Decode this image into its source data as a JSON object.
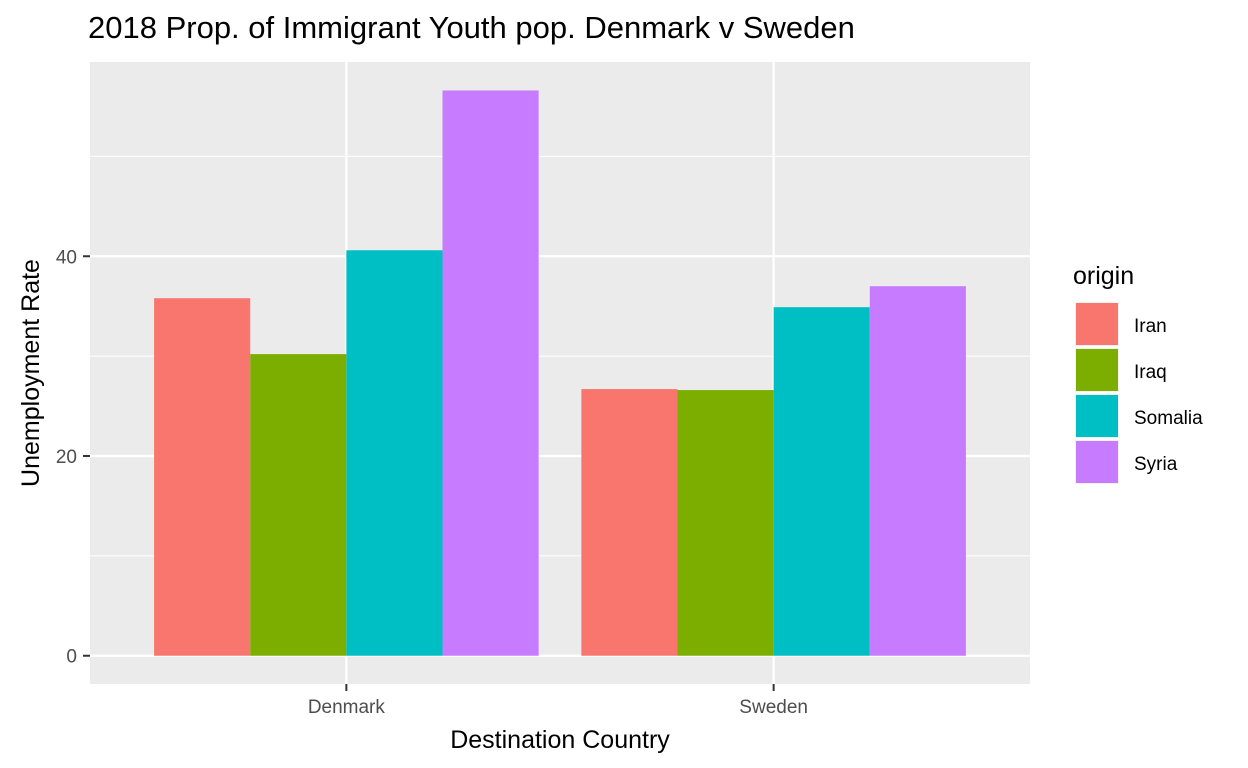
{
  "chart_data": {
    "type": "bar",
    "title": "2018 Prop. of Immigrant Youth pop. Denmark v Sweden",
    "xlabel": "Destination Country",
    "ylabel": "Unemployment Rate",
    "categories": [
      "Denmark",
      "Sweden"
    ],
    "series": [
      {
        "name": "Iran",
        "values": [
          35.8,
          26.7
        ]
      },
      {
        "name": "Iraq",
        "values": [
          30.2,
          26.6
        ]
      },
      {
        "name": "Somalia",
        "values": [
          40.6,
          34.9
        ]
      },
      {
        "name": "Syria",
        "values": [
          56.6,
          37.0
        ]
      }
    ],
    "colors": {
      "Iran": "#F8766D",
      "Iraq": "#7CAE00",
      "Somalia": "#00BFC4",
      "Syria": "#C77CFF"
    },
    "ylim": [
      -2.83,
      59.45
    ],
    "yticks": [
      0,
      20,
      40
    ],
    "ytick_labels": [
      "0",
      "20",
      "40"
    ],
    "grid": true,
    "legend": {
      "title": "origin",
      "position": "right"
    }
  }
}
